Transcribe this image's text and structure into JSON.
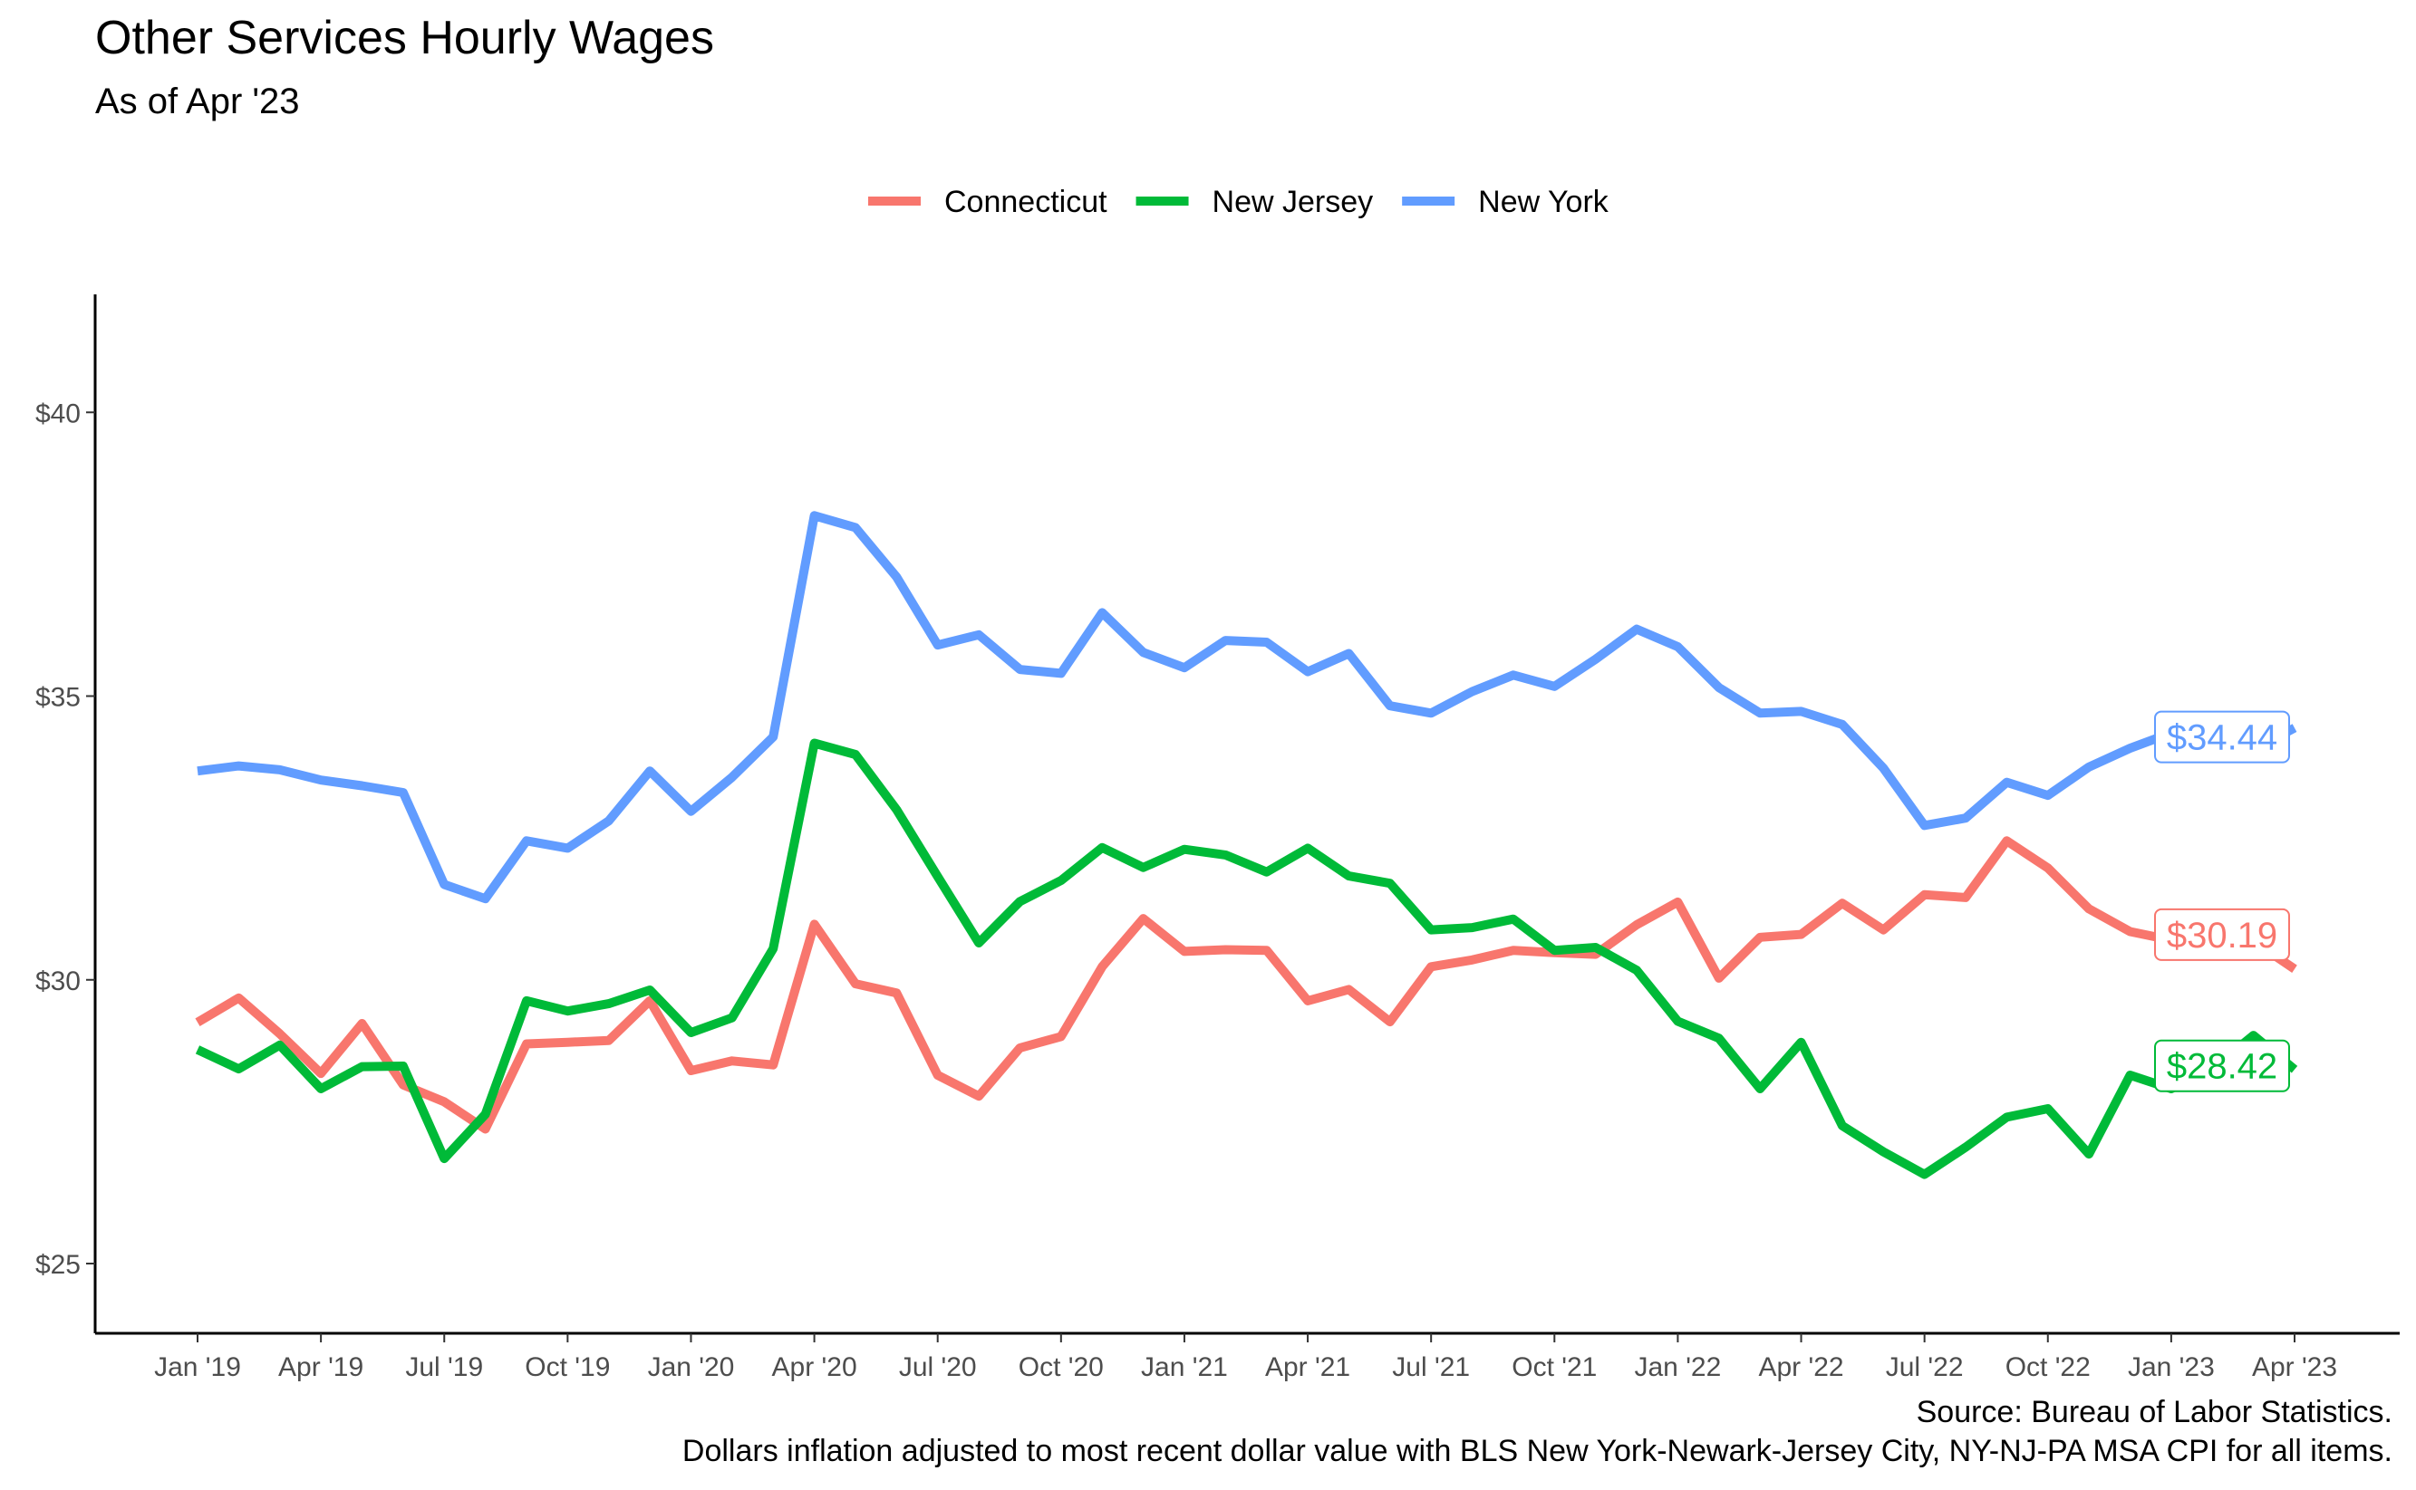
{
  "chart_data": {
    "type": "line",
    "title": "Other Services Hourly Wages",
    "subtitle": "As of Apr '23",
    "xlabel": "",
    "ylabel": "",
    "ylim": [
      23.8,
      42
    ],
    "yticks": [
      25,
      30,
      35,
      40
    ],
    "ytick_labels": [
      "$25",
      "$30",
      "$35",
      "$40"
    ],
    "x": [
      "2019-01",
      "2019-02",
      "2019-03",
      "2019-04",
      "2019-05",
      "2019-06",
      "2019-07",
      "2019-08",
      "2019-09",
      "2019-10",
      "2019-11",
      "2019-12",
      "2020-01",
      "2020-02",
      "2020-03",
      "2020-04",
      "2020-05",
      "2020-06",
      "2020-07",
      "2020-08",
      "2020-09",
      "2020-10",
      "2020-11",
      "2020-12",
      "2021-01",
      "2021-02",
      "2021-03",
      "2021-04",
      "2021-05",
      "2021-06",
      "2021-07",
      "2021-08",
      "2021-09",
      "2021-10",
      "2021-11",
      "2021-12",
      "2022-01",
      "2022-02",
      "2022-03",
      "2022-04",
      "2022-05",
      "2022-06",
      "2022-07",
      "2022-08",
      "2022-09",
      "2022-10",
      "2022-11",
      "2022-12",
      "2023-01",
      "2023-02",
      "2023-03",
      "2023-04"
    ],
    "xtick_positions": [
      0,
      3,
      6,
      9,
      12,
      15,
      18,
      21,
      24,
      27,
      30,
      33,
      36,
      39,
      42,
      45,
      48,
      51
    ],
    "xtick_labels": [
      "Jan '19",
      "Apr '19",
      "Jul '19",
      "Oct '19",
      "Jan '20",
      "Apr '20",
      "Jul '20",
      "Oct '20",
      "Jan '21",
      "Apr '21",
      "Jul '21",
      "Oct '21",
      "Jan '22",
      "Apr '22",
      "Jul '22",
      "Oct '22",
      "Jan '23",
      "Apr '23"
    ],
    "grid": false,
    "legend_position": "top",
    "series": [
      {
        "name": "Connecticut",
        "color": "#F8766D",
        "end_label": "$30.19",
        "values": [
          29.25,
          29.68,
          29.05,
          28.35,
          29.23,
          28.15,
          27.85,
          27.37,
          28.87,
          28.9,
          28.93,
          29.63,
          28.4,
          28.57,
          28.5,
          30.98,
          29.93,
          29.77,
          28.32,
          27.95,
          28.8,
          29.0,
          30.23,
          31.08,
          30.5,
          30.53,
          30.52,
          29.63,
          29.83,
          29.26,
          30.23,
          30.35,
          30.52,
          30.48,
          30.45,
          30.97,
          31.37,
          30.03,
          30.75,
          30.8,
          31.35,
          30.88,
          31.5,
          31.45,
          32.45,
          31.97,
          31.25,
          30.85,
          30.7,
          30.62,
          30.68,
          30.19
        ]
      },
      {
        "name": "New Jersey",
        "color": "#00BA38",
        "end_label": "$28.42",
        "values": [
          28.77,
          28.43,
          28.85,
          28.08,
          28.47,
          28.48,
          26.85,
          27.63,
          29.63,
          29.45,
          29.58,
          29.82,
          29.07,
          29.33,
          30.55,
          34.17,
          33.97,
          33.0,
          31.82,
          30.65,
          31.38,
          31.75,
          32.33,
          31.98,
          32.3,
          32.2,
          31.9,
          32.32,
          31.83,
          31.7,
          30.88,
          30.92,
          31.07,
          30.52,
          30.57,
          30.17,
          29.27,
          28.97,
          28.08,
          28.9,
          27.43,
          26.97,
          26.57,
          27.05,
          27.58,
          27.73,
          26.93,
          28.32,
          28.08,
          28.43,
          29.02,
          28.42
        ]
      },
      {
        "name": "New York",
        "color": "#619CFF",
        "end_label": "$34.44",
        "values": [
          33.68,
          33.77,
          33.7,
          33.52,
          33.42,
          33.3,
          31.68,
          31.43,
          32.45,
          32.32,
          32.8,
          33.68,
          32.97,
          33.57,
          34.28,
          38.18,
          37.97,
          37.1,
          35.9,
          36.08,
          35.47,
          35.4,
          36.47,
          35.77,
          35.5,
          35.98,
          35.95,
          35.43,
          35.75,
          34.83,
          34.7,
          35.08,
          35.37,
          35.17,
          35.65,
          36.18,
          35.87,
          35.15,
          34.7,
          34.73,
          34.5,
          33.73,
          32.72,
          32.85,
          33.48,
          33.25,
          33.75,
          34.08,
          34.35,
          33.9,
          34.05,
          34.44
        ]
      }
    ]
  },
  "caption": {
    "source": "Source: Bureau of Labor Statistics.",
    "note": "Dollars inflation adjusted to most recent dollar value with BLS New York-Newark-Jersey City, NY-NJ-PA MSA CPI for all items."
  }
}
